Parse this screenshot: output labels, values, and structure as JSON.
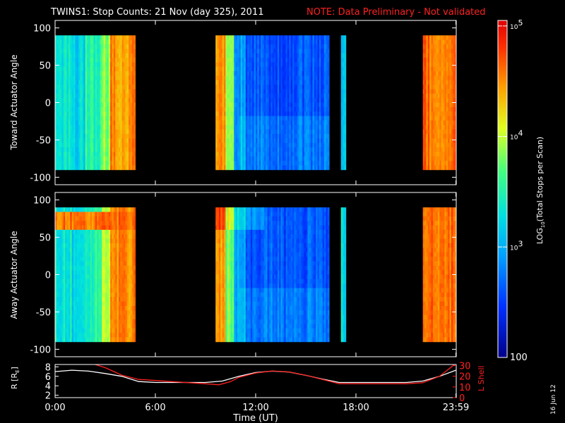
{
  "header": {
    "title": "TWINS1: Stop Counts: 21 Nov (day 325), 2011",
    "note": "NOTE: Data Preliminary - Not validated"
  },
  "footer": {
    "date_stamp": "16 Jun 12"
  },
  "colors": {
    "background": "#000000",
    "axes": "#ffffff",
    "note_text": "#ff2020",
    "r_line": "#ffffff",
    "lshell_line": "#ff2020"
  },
  "chart_data": [
    {
      "type": "heatmap",
      "ylabel": "Toward Actuator Angle",
      "ylim": [
        -110,
        110
      ],
      "yticks": [
        "100",
        "50",
        "0",
        "-50",
        "-100"
      ],
      "ytick_values": [
        100,
        50,
        0,
        -50,
        -100
      ],
      "xlim_hours": [
        0,
        24
      ],
      "data_y_range": [
        -90,
        90
      ],
      "data_segments_ut": [
        [
          "00:00",
          "04:45"
        ],
        [
          "09:40",
          "16:20"
        ],
        [
          "17:10",
          "17:20"
        ],
        [
          "22:05",
          "23:59"
        ]
      ]
    },
    {
      "type": "heatmap",
      "ylabel": "Away Actuator Angle",
      "ylim": [
        -110,
        110
      ],
      "yticks": [
        "100",
        "50",
        "0",
        "-50",
        "-100"
      ],
      "ytick_values": [
        100,
        50,
        0,
        -50,
        -100
      ],
      "xlim_hours": [
        0,
        24
      ],
      "data_y_range": [
        -90,
        90
      ],
      "data_segments_ut": [
        [
          "00:00",
          "04:45"
        ],
        [
          "09:40",
          "16:20"
        ],
        [
          "17:10",
          "17:20"
        ],
        [
          "22:05",
          "23:59"
        ]
      ]
    },
    {
      "type": "line",
      "xlabel": "Time (UT)",
      "xticks": [
        "0:00",
        "6:00",
        "12:00",
        "18:00",
        "23:59"
      ],
      "xtick_hours": [
        0,
        6,
        12,
        18,
        23.98
      ],
      "left_axis": {
        "label": "R [R",
        "label_sub": "E",
        "label_end": "]",
        "ylim": [
          1.5,
          8.5
        ],
        "yticks": [
          "8",
          "6",
          "4",
          "2"
        ],
        "ytick_values": [
          8,
          6,
          4,
          2
        ]
      },
      "right_axis": {
        "label": "L Shell",
        "ylim": [
          0,
          31
        ],
        "yticks": [
          "30",
          "20",
          "10",
          "0"
        ],
        "ytick_values": [
          30,
          20,
          10,
          0
        ]
      },
      "series": [
        {
          "axis": "left",
          "color": "#ffffff",
          "x": [
            0,
            1,
            2,
            3,
            4,
            5,
            6,
            7,
            8,
            9,
            10,
            11,
            12,
            13,
            14,
            15,
            16,
            17,
            18,
            19,
            20,
            21,
            22,
            23,
            23.98
          ],
          "y": [
            7.0,
            7.3,
            7.1,
            6.6,
            6.0,
            4.9,
            4.7,
            4.7,
            4.7,
            4.7,
            5.0,
            6.0,
            6.8,
            7.1,
            6.9,
            6.2,
            5.4,
            4.7,
            4.7,
            4.7,
            4.7,
            4.7,
            5.0,
            6.0,
            7.3
          ]
        },
        {
          "axis": "right",
          "color": "#ff2020",
          "x": [
            2.4,
            3.0,
            4.0,
            5.0,
            6.0,
            7.0,
            8.0,
            9.0,
            9.8,
            10.5,
            11.0,
            12.0,
            13.0,
            14.0,
            15.0,
            16.0,
            17.0,
            18.0,
            19.0,
            20.0,
            21.0,
            22.0,
            23.0,
            23.9
          ],
          "y": [
            31,
            28,
            21,
            17,
            16,
            15,
            14,
            13,
            12,
            15,
            19,
            23,
            25,
            24,
            21,
            17,
            13,
            13,
            13,
            13,
            13,
            14,
            20,
            31
          ]
        }
      ]
    }
  ],
  "colorbar": {
    "label": "LOG",
    "label_sub": "10",
    "label_rest": "(Total Stops per Scan)",
    "ticks": [
      "10",
      "10",
      "10",
      "100"
    ],
    "tick_exponents": [
      "5",
      "4",
      "3",
      ""
    ],
    "tick_log_values": [
      5,
      4,
      3,
      2
    ],
    "range_log": [
      2,
      5.05
    ]
  }
}
